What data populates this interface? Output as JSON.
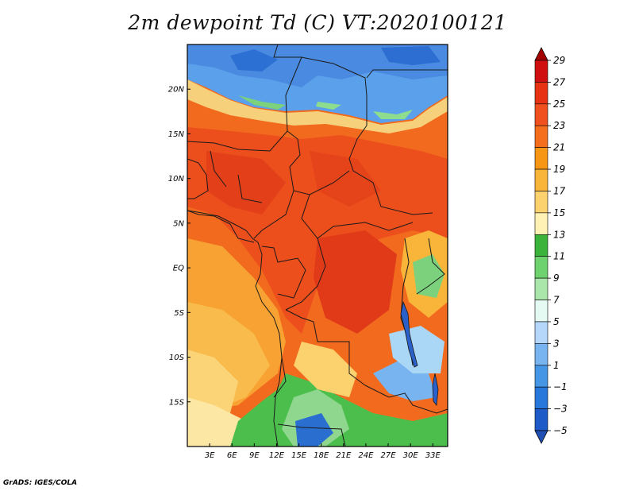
{
  "title": "2m dewpoint Td (C) VT:2020100121",
  "credit": "GrADS: IGES/COLA",
  "map": {
    "variable": "2m dewpoint",
    "units": "C",
    "valid_time": "2020100121",
    "lat_range": [
      -20,
      25
    ],
    "lon_range": [
      0,
      35
    ],
    "lat_ticks": [
      "20N",
      "15N",
      "10N",
      "5N",
      "EQ",
      "5S",
      "10S",
      "15S"
    ],
    "lon_ticks": [
      "3E",
      "6E",
      "9E",
      "12E",
      "15E",
      "18E",
      "21E",
      "24E",
      "27E",
      "30E",
      "33E"
    ]
  },
  "colorbar": {
    "levels": [
      "29",
      "27",
      "25",
      "23",
      "21",
      "19",
      "17",
      "15",
      "13",
      "11",
      "9",
      "7",
      "5",
      "3",
      "1",
      "-1",
      "-3",
      "-5"
    ],
    "colors": [
      "#a50000",
      "#d01010",
      "#e83214",
      "#f0501e",
      "#f56e1e",
      "#f79514",
      "#f9b43a",
      "#fcd26e",
      "#fff2b4",
      "#3cb43c",
      "#6ed26e",
      "#aae6aa",
      "#e4faf2",
      "#b4d7fa",
      "#78b4f0",
      "#4696e6",
      "#2878dc",
      "#1e5ac8",
      "#2050b4"
    ]
  },
  "colors": {
    "frame": "#000000",
    "border": "#1a1a1a"
  }
}
